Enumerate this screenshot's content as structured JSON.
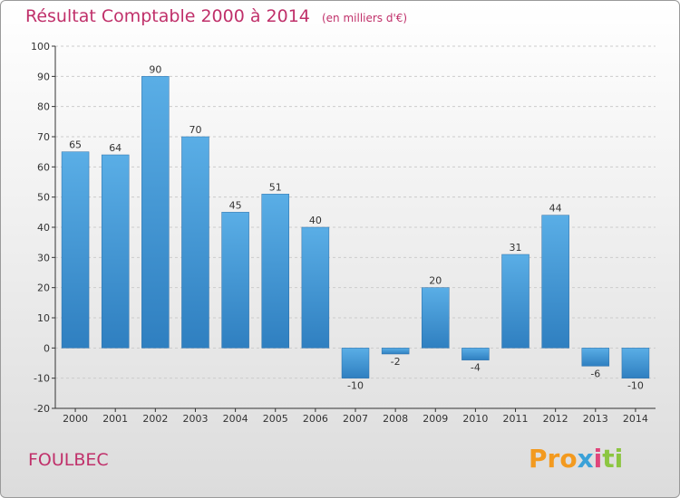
{
  "title": "Résultat Comptable 2000 à 2014",
  "title_unit": "(en milliers d'€)",
  "commune": "FOULBEC",
  "logo": {
    "parts": [
      "Pro",
      "x",
      "i",
      "ti"
    ]
  },
  "colors": {
    "title": "#c0306a",
    "bar_top": "#5aaee6",
    "bar_bottom": "#2f7fc0",
    "axis": "#333333",
    "grid": "#cccccc"
  },
  "chart_data": {
    "type": "bar",
    "categories": [
      "2000",
      "2001",
      "2002",
      "2003",
      "2004",
      "2005",
      "2006",
      "2007",
      "2008",
      "2009",
      "2010",
      "2011",
      "2012",
      "2013",
      "2014"
    ],
    "values": [
      65,
      64,
      90,
      70,
      45,
      51,
      40,
      -10,
      -2,
      20,
      -4,
      31,
      44,
      -6,
      -10
    ],
    "data_labels": [
      "65",
      "64",
      "90",
      "70",
      "45",
      "51",
      "40",
      "-10",
      "-2",
      "20",
      "-4",
      "31",
      "44",
      "-6",
      "-10"
    ],
    "ylim": [
      -20,
      100
    ],
    "yticks": [
      -20,
      -10,
      0,
      10,
      20,
      30,
      40,
      50,
      60,
      70,
      80,
      90,
      100
    ],
    "ytick_labels": [
      "-20",
      "-10",
      "0",
      "10",
      "20",
      "30",
      "40",
      "50",
      "60",
      "70",
      "80",
      "90",
      "100"
    ],
    "grid": "horizontal dashed",
    "xlabel": "",
    "ylabel": ""
  }
}
